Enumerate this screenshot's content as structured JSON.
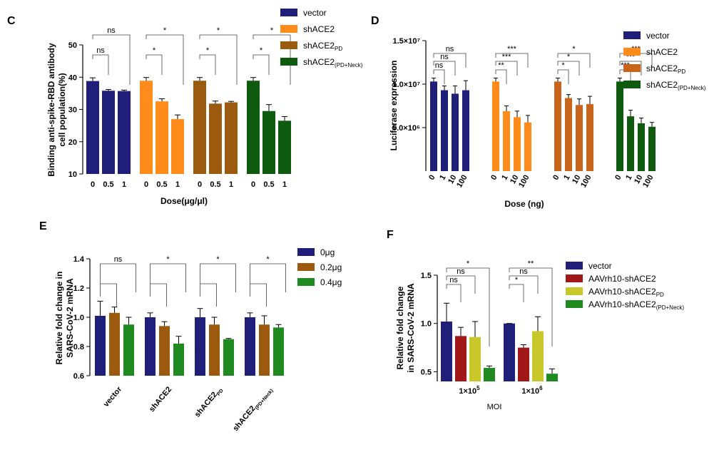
{
  "chart_data": [
    {
      "panel": "C",
      "type": "bar",
      "ylabel": "Binding anti-spike-RBD antibody cell population(%)",
      "ylabel_lines": [
        "Binding anti-spike-RBD antibody",
        "cell population(%)"
      ],
      "xlabel": "Dose(μg/μl)",
      "ylim": [
        10,
        50
      ],
      "yticks": [
        "10",
        "20",
        "30",
        "40",
        "50"
      ],
      "legend": "right",
      "groups": [
        {
          "name": "vector",
          "color": "#1f1f7a",
          "categories": [
            "0",
            "0.5",
            "1"
          ],
          "values": [
            38.8,
            35.8,
            35.7
          ],
          "errors": [
            1.0,
            0.4,
            0.3
          ]
        },
        {
          "name": "shACE2",
          "color": "#ff8c1a",
          "categories": [
            "0",
            "0.5",
            "1"
          ],
          "values": [
            38.9,
            32.5,
            27.0
          ],
          "errors": [
            1.0,
            0.8,
            1.3
          ]
        },
        {
          "name": "shACE2PD",
          "color": "#9c5a0e",
          "categories": [
            "0",
            "0.5",
            "1"
          ],
          "values": [
            38.9,
            31.8,
            32.2
          ],
          "errors": [
            1.0,
            0.8,
            0.3
          ]
        },
        {
          "name": "shACE2(PD+Neck)",
          "color": "#0e5a0e",
          "categories": [
            "0",
            "0.5",
            "1"
          ],
          "values": [
            38.9,
            29.5,
            26.5
          ],
          "errors": [
            1.0,
            2.0,
            1.3
          ]
        }
      ],
      "legend_entries": [
        {
          "main": "vector",
          "sub": ""
        },
        {
          "main": "shACE2",
          "sub": ""
        },
        {
          "main": "shACE2",
          "sub": "PD"
        },
        {
          "main": "shACE2",
          "sub": "(PD+Neck)"
        }
      ],
      "brackets": [
        {
          "group": 0,
          "from": 0,
          "to": 1,
          "label": "ns",
          "level": 1
        },
        {
          "group": 0,
          "from": 0,
          "to": 2,
          "label": "ns",
          "level": 2
        },
        {
          "group": 1,
          "from": 0,
          "to": 1,
          "label": "*",
          "level": 1
        },
        {
          "group": 1,
          "from": 0,
          "to": 2,
          "label": "*",
          "level": 2
        },
        {
          "group": 2,
          "from": 0,
          "to": 1,
          "label": "*",
          "level": 1
        },
        {
          "group": 2,
          "from": 0,
          "to": 2,
          "label": "*",
          "level": 2
        },
        {
          "group": 3,
          "from": 0,
          "to": 1,
          "label": "*",
          "level": 1
        },
        {
          "group": 3,
          "from": 0,
          "to": 2,
          "label": "*",
          "level": 2
        }
      ]
    },
    {
      "panel": "D",
      "type": "bar",
      "ylabel": "Luciferase expression",
      "xlabel": "Dose (ng)",
      "ylim": [
        0,
        15000000
      ],
      "yticks": [
        "5.0×10⁶",
        "1.0×10⁷",
        "1.5×10⁷"
      ],
      "ytick_values": [
        5000000,
        10000000,
        15000000
      ],
      "legend": "right",
      "groups": [
        {
          "name": "vector",
          "color": "#1f1f7a",
          "categories": [
            "0",
            "1",
            "10",
            "100"
          ],
          "values": [
            10300000,
            9300000,
            8900000,
            9300000
          ],
          "errors": [
            400000,
            500000,
            900000,
            1100000
          ]
        },
        {
          "name": "shACE2",
          "color": "#ff8c1a",
          "categories": [
            "0",
            "1",
            "10",
            "100"
          ],
          "values": [
            10300000,
            6900000,
            6200000,
            5600000
          ],
          "errors": [
            400000,
            600000,
            700000,
            800000
          ]
        },
        {
          "name": "shACE2PD",
          "color": "#c8651a",
          "categories": [
            "0",
            "1",
            "10",
            "100"
          ],
          "values": [
            10300000,
            8400000,
            7600000,
            7700000
          ],
          "errors": [
            400000,
            400000,
            700000,
            900000
          ]
        },
        {
          "name": "shACE2(PD+Neck)",
          "color": "#0e5a0e",
          "categories": [
            "0",
            "1",
            "10",
            "100"
          ],
          "values": [
            10300000,
            6300000,
            5500000,
            5100000
          ],
          "errors": [
            400000,
            700000,
            600000,
            500000
          ]
        }
      ],
      "legend_entries": [
        {
          "main": "vector",
          "sub": ""
        },
        {
          "main": "shACE2",
          "sub": ""
        },
        {
          "main": "shACE2",
          "sub": "PD"
        },
        {
          "main": "shACE2",
          "sub": "(PD+Neck)"
        }
      ],
      "brackets": [
        {
          "group": 0,
          "from": 0,
          "to": 1,
          "label": "ns",
          "level": 1
        },
        {
          "group": 0,
          "from": 0,
          "to": 2,
          "label": "ns",
          "level": 2
        },
        {
          "group": 0,
          "from": 0,
          "to": 3,
          "label": "ns",
          "level": 3
        },
        {
          "group": 1,
          "from": 0,
          "to": 1,
          "label": "**",
          "level": 1
        },
        {
          "group": 1,
          "from": 0,
          "to": 2,
          "label": "***",
          "level": 2
        },
        {
          "group": 1,
          "from": 0,
          "to": 3,
          "label": "***",
          "level": 3
        },
        {
          "group": 2,
          "from": 0,
          "to": 1,
          "label": "*",
          "level": 1
        },
        {
          "group": 2,
          "from": 0,
          "to": 2,
          "label": "*",
          "level": 2
        },
        {
          "group": 2,
          "from": 0,
          "to": 3,
          "label": "*",
          "level": 3
        },
        {
          "group": 3,
          "from": 0,
          "to": 1,
          "label": "***",
          "level": 1
        },
        {
          "group": 3,
          "from": 0,
          "to": 2,
          "label": "***",
          "level": 2
        },
        {
          "group": 3,
          "from": 0,
          "to": 3,
          "label": "***",
          "level": 3
        }
      ]
    },
    {
      "panel": "E",
      "type": "bar",
      "ylabel": "Relative fold change in SARS-CoV-2 mRNA",
      "ylabel_lines": [
        "Relative fold change in",
        "SARS-CoV-2 mRNA"
      ],
      "xlabel": "",
      "ylim": [
        0.6,
        1.4
      ],
      "yticks": [
        "0.6",
        "0.8",
        "1.0",
        "1.2",
        "1.4"
      ],
      "legend": "right",
      "categories": [
        {
          "main": "vector",
          "sub": ""
        },
        {
          "main": "shACE2",
          "sub": ""
        },
        {
          "main": "shACE2",
          "sub": "PD"
        },
        {
          "main": "shACE2",
          "sub": "(PD+Neck)"
        }
      ],
      "series": [
        {
          "name": "0μg",
          "color": "#1f1f7a",
          "values": [
            1.01,
            1.0,
            1.0,
            1.0
          ],
          "errors": [
            0.1,
            0.03,
            0.06,
            0.03
          ]
        },
        {
          "name": "0.2μg",
          "color": "#9c5a0e",
          "values": [
            1.03,
            0.94,
            0.95,
            0.95
          ],
          "errors": [
            0.04,
            0.03,
            0.05,
            0.06
          ]
        },
        {
          "name": "0.4μg",
          "color": "#1f8a1f",
          "values": [
            0.95,
            0.82,
            0.85,
            0.93
          ],
          "errors": [
            0.05,
            0.05,
            0.005,
            0.02
          ]
        }
      ],
      "brackets": [
        {
          "group": 0,
          "label": "ns"
        },
        {
          "group": 1,
          "label": "*"
        },
        {
          "group": 2,
          "label": "*"
        },
        {
          "group": 3,
          "label": "*"
        }
      ]
    },
    {
      "panel": "F",
      "type": "bar",
      "ylabel": "Relative fold change in SARS-CoV-2 mRNA",
      "ylabel_lines": [
        "Relative fold change",
        "in SARS-CoV-2 mRNA"
      ],
      "xlabel": "MOI",
      "ylim": [
        0.4,
        1.5
      ],
      "yticks": [
        "0.5",
        "1.0",
        "1.5"
      ],
      "ytick_values": [
        0.5,
        1.0,
        1.5
      ],
      "legend": "right",
      "categories": [
        {
          "main": "1×10",
          "sup": "5"
        },
        {
          "main": "1×10",
          "sup": "6"
        }
      ],
      "series": [
        {
          "name": "vector",
          "color": "#1f1f7a",
          "values": [
            1.02,
            1.0
          ],
          "errors": [
            0.19,
            0.0
          ]
        },
        {
          "name": "AAVrh10-shACE2",
          "color": "#a01818",
          "values": [
            0.87,
            0.75
          ],
          "errors": [
            0.09,
            0.03
          ]
        },
        {
          "name": "AAVrh10-shACE2PD",
          "color": "#c8c82a",
          "values": [
            0.86,
            0.92
          ],
          "errors": [
            0.16,
            0.15
          ]
        },
        {
          "name": "AAVrh10-shACE2(PD+Neck)",
          "color": "#1f8a1f",
          "values": [
            0.54,
            0.48
          ],
          "errors": [
            0.02,
            0.05
          ]
        }
      ],
      "legend_entries": [
        {
          "main": "vector",
          "sub": ""
        },
        {
          "main": "AAVrh10-shACE2",
          "sub": ""
        },
        {
          "main": "AAVrh10-shACE2",
          "sub": "PD"
        },
        {
          "main": "AAVrh10-shACE2",
          "sub": "(PD+Neck)"
        }
      ],
      "brackets": [
        {
          "group": 0,
          "from": 0,
          "to": 1,
          "label": "ns",
          "level": 1
        },
        {
          "group": 0,
          "from": 0,
          "to": 2,
          "label": "ns",
          "level": 2
        },
        {
          "group": 0,
          "from": 0,
          "to": 3,
          "label": "*",
          "level": 3
        },
        {
          "group": 1,
          "from": 0,
          "to": 1,
          "label": "*",
          "level": 1
        },
        {
          "group": 1,
          "from": 0,
          "to": 2,
          "label": "ns",
          "level": 2
        },
        {
          "group": 1,
          "from": 0,
          "to": 3,
          "label": "**",
          "level": 3
        }
      ]
    }
  ]
}
